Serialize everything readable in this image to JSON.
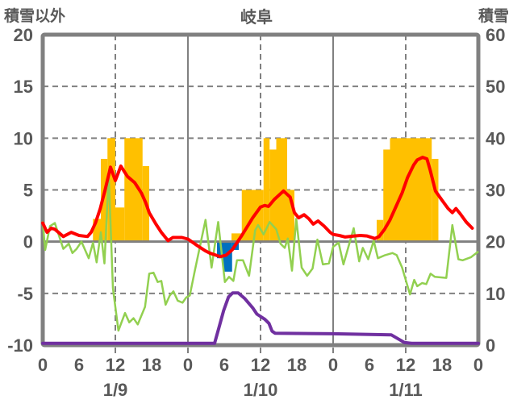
{
  "chart": {
    "title": "岐阜",
    "left_axis_title": "積雪以外",
    "right_axis_title": "積雪"
  },
  "chart_data": {
    "type": "combo",
    "title": "岐阜",
    "legend": "none",
    "x_axis": {
      "hours_total": 72,
      "tick_interval_hours": 6,
      "tick_labels": [
        "0",
        "6",
        "12",
        "18",
        "0",
        "6",
        "12",
        "18",
        "0",
        "6",
        "12",
        "18",
        "0"
      ],
      "day_labels": [
        "1/9",
        "1/10",
        "1/11"
      ],
      "day_label_center_hours": [
        12,
        36,
        60
      ]
    },
    "left_axis": {
      "title": "積雪以外",
      "min": -10,
      "max": 20,
      "ticks": [
        20,
        15,
        10,
        5,
        0,
        -5,
        -10
      ]
    },
    "right_axis": {
      "title": "積雪",
      "min": 0,
      "max": 60,
      "ticks": [
        60,
        50,
        40,
        30,
        20,
        10,
        0
      ]
    },
    "gridlines": {
      "h_dashed_left_values": [
        15,
        10,
        5,
        -5
      ],
      "h_solid_left_values": [
        0
      ],
      "v_dashed_hours": [
        12,
        36,
        60
      ],
      "v_solid_hours": [
        24,
        48
      ],
      "axis_tick_hours": [
        12,
        24,
        36,
        48,
        60
      ]
    },
    "colors": {
      "frame": "#808080",
      "text": "#595959",
      "sunshine": "#FFC000",
      "precipitation": "#0070C0",
      "temperature": "#FF0000",
      "green_series": "#92D050",
      "snow_depth": "#7030A0"
    },
    "series": [
      {
        "name": "sunshine-bars",
        "type": "bar",
        "axis": "left",
        "color_key": "sunshine",
        "bars": [
          {
            "start": 8.3,
            "end": 9.6,
            "value": 2.2
          },
          {
            "start": 9.6,
            "end": 10.7,
            "value": 8
          },
          {
            "start": 10.7,
            "end": 12.0,
            "value": 10
          },
          {
            "start": 12.0,
            "end": 13.5,
            "value": 3.3
          },
          {
            "start": 13.5,
            "end": 16.5,
            "value": 10
          },
          {
            "start": 16.5,
            "end": 17.6,
            "value": 7.3
          },
          {
            "start": 31.2,
            "end": 32.9,
            "value": 0.8
          },
          {
            "start": 32.9,
            "end": 36.5,
            "value": 5
          },
          {
            "start": 36.5,
            "end": 37.5,
            "value": 10
          },
          {
            "start": 37.5,
            "end": 38.6,
            "value": 8.9
          },
          {
            "start": 38.6,
            "end": 40.4,
            "value": 10
          },
          {
            "start": 40.4,
            "end": 41.6,
            "value": 5
          },
          {
            "start": 55.2,
            "end": 56.3,
            "value": 2.1
          },
          {
            "start": 56.3,
            "end": 57.4,
            "value": 8.9
          },
          {
            "start": 57.4,
            "end": 64.3,
            "value": 10
          },
          {
            "start": 64.3,
            "end": 65.4,
            "value": 8
          }
        ]
      },
      {
        "name": "precipitation-bars",
        "type": "bar",
        "axis": "left",
        "color_key": "precipitation",
        "bars": [
          {
            "start": 28.8,
            "end": 29.8,
            "value": -1.6
          },
          {
            "start": 29.8,
            "end": 31.3,
            "value": -2.9
          },
          {
            "start": 31.3,
            "end": 32.4,
            "value": -0.8
          }
        ]
      },
      {
        "name": "green-line",
        "type": "line",
        "axis": "left",
        "color_key": "green_series",
        "width": 2.5,
        "points": [
          [
            0,
            1.9
          ],
          [
            0.4,
            -0.8
          ],
          [
            1.2,
            1.5
          ],
          [
            2,
            1.8
          ],
          [
            3.4,
            -0.7
          ],
          [
            4.3,
            -0.2
          ],
          [
            4.9,
            -1.1
          ],
          [
            5.6,
            -0.7
          ],
          [
            6.4,
            0.0
          ],
          [
            7.6,
            -1.6
          ],
          [
            8.3,
            -0.1
          ],
          [
            8.9,
            -2.0
          ],
          [
            9.6,
            0.9
          ],
          [
            10.2,
            -2.1
          ],
          [
            10.9,
            6.5
          ],
          [
            11.6,
            -4.5
          ],
          [
            12.5,
            -8.6
          ],
          [
            13.6,
            -6.9
          ],
          [
            14.3,
            -7.8
          ],
          [
            15.0,
            -7.4
          ],
          [
            15.7,
            -8.0
          ],
          [
            16.9,
            -6.3
          ],
          [
            17.6,
            -3.1
          ],
          [
            18.3,
            -3.0
          ],
          [
            19.0,
            -3.9
          ],
          [
            19.6,
            -3.8
          ],
          [
            20.3,
            -6.1
          ],
          [
            21.0,
            -5.2
          ],
          [
            21.6,
            -4.8
          ],
          [
            22.3,
            -5.7
          ],
          [
            23.1,
            -5.9
          ],
          [
            23.7,
            -5.4
          ],
          [
            24.3,
            -5.2
          ],
          [
            25.1,
            -2.9
          ],
          [
            26.9,
            2.1
          ],
          [
            27.9,
            -2.5
          ],
          [
            29.0,
            1.9
          ],
          [
            30.1,
            -3.9
          ],
          [
            30.8,
            -3.4
          ],
          [
            31.5,
            -3.8
          ],
          [
            32.1,
            -1.8
          ],
          [
            33.1,
            -1.8
          ],
          [
            34.1,
            -3.3
          ],
          [
            35.1,
            1.1
          ],
          [
            35.6,
            1.6
          ],
          [
            36.5,
            0.7
          ],
          [
            37.5,
            1.9
          ],
          [
            38.6,
            1.2
          ],
          [
            39.3,
            -0.2
          ],
          [
            40.0,
            -0.6
          ],
          [
            40.5,
            0.3
          ],
          [
            41.2,
            -2.8
          ],
          [
            41.9,
            2.2
          ],
          [
            42.8,
            -2.5
          ],
          [
            43.7,
            -3.3
          ],
          [
            44.6,
            -2.6
          ],
          [
            45.4,
            0.2
          ],
          [
            46.3,
            -2.2
          ],
          [
            47.3,
            -2.1
          ],
          [
            48.0,
            -0.5
          ],
          [
            48.9,
            -0.1
          ],
          [
            49.7,
            -2.2
          ],
          [
            51.4,
            1.3
          ],
          [
            52.3,
            -1.9
          ],
          [
            52.9,
            -0.6
          ],
          [
            53.8,
            -1.7
          ],
          [
            54.7,
            0.1
          ],
          [
            55.4,
            -1.6
          ],
          [
            56.6,
            -1.3
          ],
          [
            57.8,
            -1.1
          ],
          [
            58.5,
            -1.3
          ],
          [
            59.4,
            -2.5
          ],
          [
            60.7,
            -5.1
          ],
          [
            61.4,
            -3.7
          ],
          [
            61.9,
            -4.3
          ],
          [
            62.7,
            -4.0
          ],
          [
            63.4,
            -4.1
          ],
          [
            64.1,
            -3.1
          ],
          [
            64.8,
            -3.4
          ],
          [
            66.7,
            -3.5
          ],
          [
            67.7,
            1.6
          ],
          [
            68.7,
            -1.7
          ],
          [
            69.4,
            -1.8
          ],
          [
            70.8,
            -1.5
          ],
          [
            71.9,
            -1.0
          ]
        ]
      },
      {
        "name": "temperature-line",
        "type": "line",
        "axis": "left",
        "color_key": "temperature",
        "width": 4,
        "points": [
          [
            0,
            1.8
          ],
          [
            0.7,
            0.9
          ],
          [
            1.4,
            1.3
          ],
          [
            2,
            1.2
          ],
          [
            3.4,
            0.5
          ],
          [
            4.7,
            0.9
          ],
          [
            6,
            0.6
          ],
          [
            7.4,
            0.5
          ],
          [
            8,
            0.9
          ],
          [
            8.7,
            1.8
          ],
          [
            9.5,
            3.2
          ],
          [
            10.3,
            5.0
          ],
          [
            11.2,
            7.2
          ],
          [
            12,
            5.9
          ],
          [
            12.9,
            7.3
          ],
          [
            14,
            6.3
          ],
          [
            15.2,
            5.7
          ],
          [
            16.3,
            4.7
          ],
          [
            17,
            3.8
          ],
          [
            17.6,
            2.8
          ],
          [
            18.7,
            1.7
          ],
          [
            19.6,
            0.9
          ],
          [
            20.7,
            0.1
          ],
          [
            21.5,
            0.4
          ],
          [
            23,
            0.4
          ],
          [
            24,
            0.25
          ],
          [
            25.6,
            -0.4
          ],
          [
            26.9,
            -0.9
          ],
          [
            27.6,
            -1.1
          ],
          [
            28.6,
            -1.3
          ],
          [
            29.3,
            -1.45
          ],
          [
            30.3,
            -1.3
          ],
          [
            31.3,
            -0.8
          ],
          [
            32.9,
            0.6
          ],
          [
            34.7,
            2.3
          ],
          [
            36,
            3.35
          ],
          [
            36.7,
            3.5
          ],
          [
            37.3,
            3.4
          ],
          [
            38.3,
            4.1
          ],
          [
            39.8,
            4.9
          ],
          [
            40.9,
            4.3
          ],
          [
            41.6,
            2.8
          ],
          [
            42.3,
            2.3
          ],
          [
            43.2,
            2.6
          ],
          [
            44,
            2.2
          ],
          [
            44.7,
            1.7
          ],
          [
            45.5,
            2.0
          ],
          [
            46.5,
            1.5
          ],
          [
            47.5,
            0.9
          ],
          [
            48,
            0.7
          ],
          [
            49,
            0.6
          ],
          [
            50,
            0.45
          ],
          [
            51.5,
            0.55
          ],
          [
            52.5,
            0.6
          ],
          [
            53.6,
            0.55
          ],
          [
            54.9,
            0.3
          ],
          [
            55.6,
            0.5
          ],
          [
            56.5,
            1.2
          ],
          [
            57.4,
            2.1
          ],
          [
            58.4,
            3.4
          ],
          [
            59.4,
            4.7
          ],
          [
            60.3,
            6.2
          ],
          [
            61.3,
            7.4
          ],
          [
            61.9,
            7.9
          ],
          [
            62.8,
            8.15
          ],
          [
            63.5,
            8.0
          ],
          [
            64,
            7.0
          ],
          [
            64.9,
            4.9
          ],
          [
            66,
            4.0
          ],
          [
            67,
            3.2
          ],
          [
            67.7,
            2.8
          ],
          [
            68.3,
            3.2
          ],
          [
            69,
            2.7
          ],
          [
            70,
            1.9
          ],
          [
            71,
            1.3
          ]
        ]
      },
      {
        "name": "snow-depth-line",
        "type": "line",
        "axis": "right",
        "color_key": "snow_depth",
        "width": 4,
        "points": [
          [
            0,
            0.35
          ],
          [
            28.4,
            0.35
          ],
          [
            29.1,
            3.3
          ],
          [
            29.9,
            6.7
          ],
          [
            30.7,
            9.3
          ],
          [
            31.4,
            10.1
          ],
          [
            32.3,
            10.1
          ],
          [
            33.4,
            9.0
          ],
          [
            34.7,
            7.2
          ],
          [
            35.4,
            6.0
          ],
          [
            36.7,
            5.0
          ],
          [
            37.4,
            4.2
          ],
          [
            37.9,
            2.7
          ],
          [
            38.4,
            2.3
          ],
          [
            48,
            2.2
          ],
          [
            57.6,
            2.0
          ],
          [
            59.8,
            0.5
          ],
          [
            61,
            0.35
          ],
          [
            72,
            0.35
          ]
        ]
      }
    ]
  }
}
